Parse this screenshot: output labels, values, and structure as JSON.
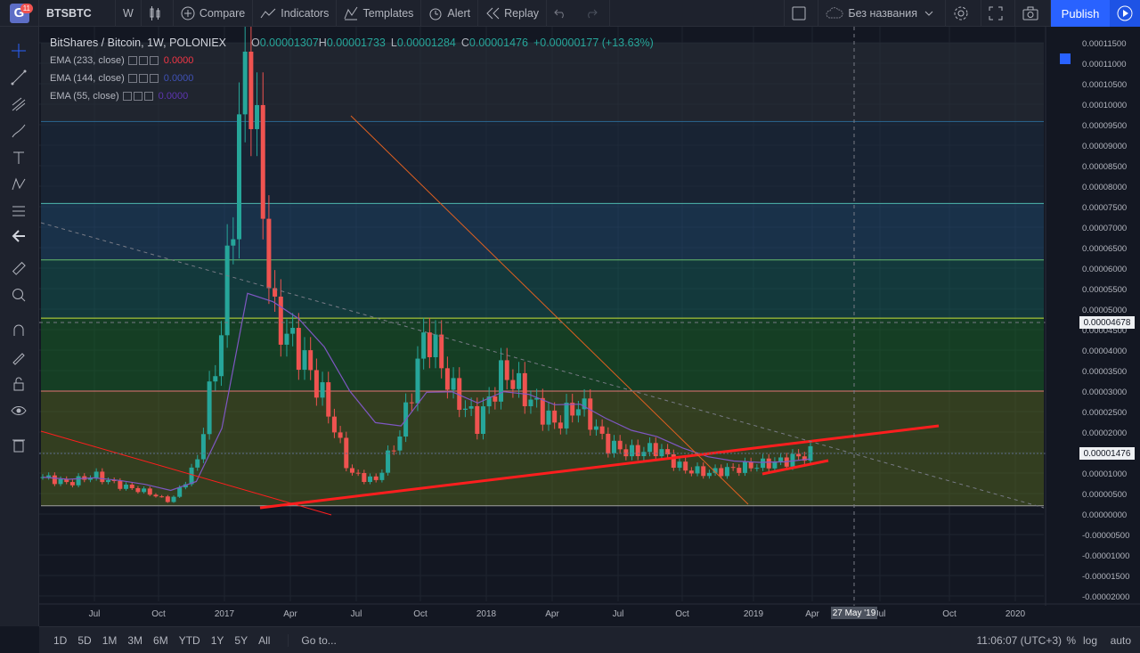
{
  "topbar": {
    "badge": "11",
    "symbol": "BTSBTC",
    "interval": "W",
    "compare": "Compare",
    "indicators": "Indicators",
    "templates": "Templates",
    "alert": "Alert",
    "replay": "Replay",
    "layout_name": "Без названия",
    "publish": "Publish"
  },
  "legend": {
    "title": "BitShares / Bitcoin, 1W, POLONIEX",
    "open_label": "O",
    "open": "0.00001307",
    "high_label": "H",
    "high": "0.00001733",
    "low_label": "L",
    "low": "0.00001284",
    "close_label": "C",
    "close": "0.00001476",
    "change": "+0.00000177 (+13.63%)",
    "ema": [
      {
        "label": "EMA (233, close)",
        "value": "0.0000",
        "color": "#f23645"
      },
      {
        "label": "EMA (144, close)",
        "value": "0.0000",
        "color": "#3f51b5"
      },
      {
        "label": "EMA (55, close)",
        "value": "0.0000",
        "color": "#5e35b1"
      }
    ]
  },
  "price_axis": [
    "0.00011500",
    "0.00011000",
    "0.00010500",
    "0.00010000",
    "0.00009500",
    "0.00009000",
    "0.00008500",
    "0.00008000",
    "0.00007500",
    "0.00007000",
    "0.00006500",
    "0.00006000",
    "0.00005500",
    "0.00005000",
    "0.00004500",
    "0.00004000",
    "0.00003500",
    "0.00003000",
    "0.00002500",
    "0.00002000",
    "0.00001500",
    "0.00001000",
    "0.00000500",
    "0.00000000",
    "-0.00000500",
    "-0.00001000",
    "-0.00001500",
    "-0.00002000"
  ],
  "time_axis": [
    "Jul",
    "Oct",
    "2017",
    "Apr",
    "Jul",
    "Oct",
    "2018",
    "Apr",
    "Jul",
    "Oct",
    "2019",
    "Apr",
    "Jul",
    "Oct",
    "2020"
  ],
  "last_price": "0.00001476",
  "crosshair_price": "0.00004678",
  "crosshair_date": "27 May '19",
  "bottombar": {
    "ranges": [
      "1D",
      "5D",
      "1M",
      "3M",
      "6M",
      "YTD",
      "1Y",
      "5Y",
      "All"
    ],
    "goto": "Go to...",
    "clock": "11:06:07 (UTC+3)",
    "percent": "%",
    "log": "log",
    "auto": "auto"
  },
  "chart_data": {
    "type": "candlestick",
    "title": "BitShares / Bitcoin, 1W, POLONIEX",
    "ylim": [
      -2.1e-05,
      0.000117
    ],
    "fib_levels": [
      9.58e-05,
      7.58e-05,
      6.2e-05,
      4.78e-05,
      3e-05,
      2e-06
    ],
    "close_series": [
      {
        "date": "2016-05",
        "close": 9e-06
      },
      {
        "date": "2016-07",
        "close": 7.5e-06
      },
      {
        "date": "2016-09",
        "close": 9.5e-06
      },
      {
        "date": "2016-11",
        "close": 7e-06
      },
      {
        "date": "2017-01",
        "close": 5.5e-06
      },
      {
        "date": "2017-03",
        "close": 3e-06
      },
      {
        "date": "2017-04",
        "close": 1.2e-05
      },
      {
        "date": "2017-05",
        "close": 4.5e-05
      },
      {
        "date": "2017-06",
        "close": 0.000115
      },
      {
        "date": "2017-07",
        "close": 4.8e-05
      },
      {
        "date": "2017-08",
        "close": 4e-05
      },
      {
        "date": "2017-09",
        "close": 2.8e-05
      },
      {
        "date": "2017-10",
        "close": 1e-05
      },
      {
        "date": "2017-11",
        "close": 8e-06
      },
      {
        "date": "2017-12",
        "close": 2e-05
      },
      {
        "date": "2018-01",
        "close": 4.5e-05
      },
      {
        "date": "2018-02",
        "close": 3e-05
      },
      {
        "date": "2018-03",
        "close": 2.2e-05
      },
      {
        "date": "2018-04",
        "close": 3.5e-05
      },
      {
        "date": "2018-05",
        "close": 2.8e-05
      },
      {
        "date": "2018-06",
        "close": 2.2e-05
      },
      {
        "date": "2018-07",
        "close": 2.7e-05
      },
      {
        "date": "2018-08",
        "close": 1.7e-05
      },
      {
        "date": "2018-09",
        "close": 1.5e-05
      },
      {
        "date": "2018-10",
        "close": 1.6e-05
      },
      {
        "date": "2018-11",
        "close": 1.1e-05
      },
      {
        "date": "2018-12",
        "close": 1e-05
      },
      {
        "date": "2019-01",
        "close": 1.1e-05
      },
      {
        "date": "2019-02",
        "close": 1.2e-05
      },
      {
        "date": "2019-03",
        "close": 1.3e-05
      },
      {
        "date": "2019-04",
        "close": 1.48e-05
      }
    ]
  }
}
